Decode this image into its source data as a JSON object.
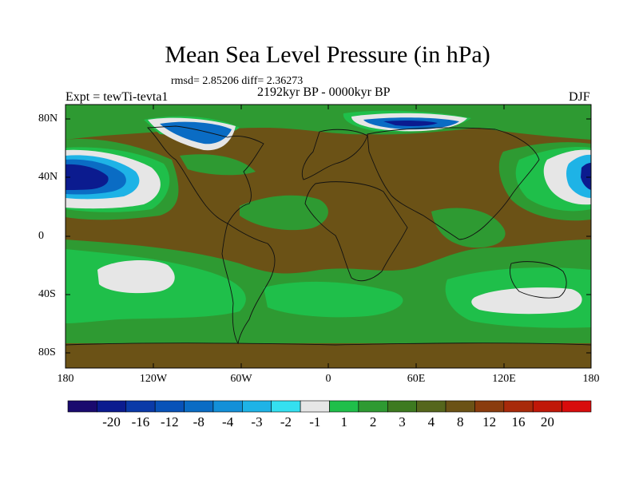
{
  "title": "Mean Sea Level Pressure (in hPa)",
  "stats": "rmsd= 2.85206 diff= 2.36273",
  "period": "2192kyr BP - 0000kyr BP",
  "experiment": "Expt = tewTi-tevta1",
  "season": "DJF",
  "axes": {
    "y_ticks": [
      "80N",
      "40N",
      "0",
      "40S",
      "80S"
    ],
    "x_ticks": [
      "180",
      "120W",
      "60W",
      "0",
      "60E",
      "120E",
      "180"
    ]
  },
  "colorbar": {
    "colors": [
      "#1a0a6e",
      "#0b1b8f",
      "#0a3aa8",
      "#0852b8",
      "#0a6cc4",
      "#1390d8",
      "#1eb3e6",
      "#34e0f0",
      "#e6e6e6",
      "#1fbf4a",
      "#2e9a32",
      "#3d7a20",
      "#55661c",
      "#6b5216",
      "#8a3c0e",
      "#a82a0a",
      "#c01808",
      "#d80c0c"
    ],
    "labels": [
      "-20",
      "-16",
      "-12",
      "-8",
      "-4",
      "-3",
      "-2",
      "-1",
      "1",
      "2",
      "3",
      "4",
      "8",
      "12",
      "16",
      "20"
    ]
  }
}
